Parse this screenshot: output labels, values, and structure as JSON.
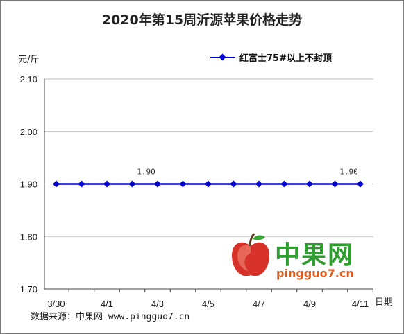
{
  "chart_data": {
    "type": "line",
    "title": "2020年第15周沂源苹果价格走势",
    "ylabel": "元/斤",
    "xlabel": "日期",
    "ylim": [
      1.7,
      2.1
    ],
    "yticks": [
      "2.10",
      "2.00",
      "1.90",
      "1.80",
      "1.70"
    ],
    "categories": [
      "3/30",
      "3/31",
      "4/1",
      "4/2",
      "4/3",
      "4/4",
      "4/5",
      "4/6",
      "4/7",
      "4/8",
      "4/9",
      "4/10",
      "4/11"
    ],
    "xtick_labels": [
      "3/30",
      "4/1",
      "4/3",
      "4/5",
      "4/7",
      "4/9",
      "4/11"
    ],
    "series": [
      {
        "name": "红富士75#以上不封顶",
        "values": [
          1.9,
          1.9,
          1.9,
          1.9,
          1.9,
          1.9,
          1.9,
          1.9,
          1.9,
          1.9,
          1.9,
          1.9,
          1.9
        ],
        "color": "#0000cc"
      }
    ],
    "data_labels": [
      {
        "index": 3,
        "text": "1.90"
      },
      {
        "index": 11,
        "text": "1.90"
      }
    ],
    "grid": "horizontal",
    "legend_position": "top-right"
  },
  "source_text": "数据来源：中果网 www.pingguo7.cn",
  "watermark": {
    "name": "中果网",
    "url": "pingguo7.cn",
    "icon": "apple-logo-icon"
  }
}
